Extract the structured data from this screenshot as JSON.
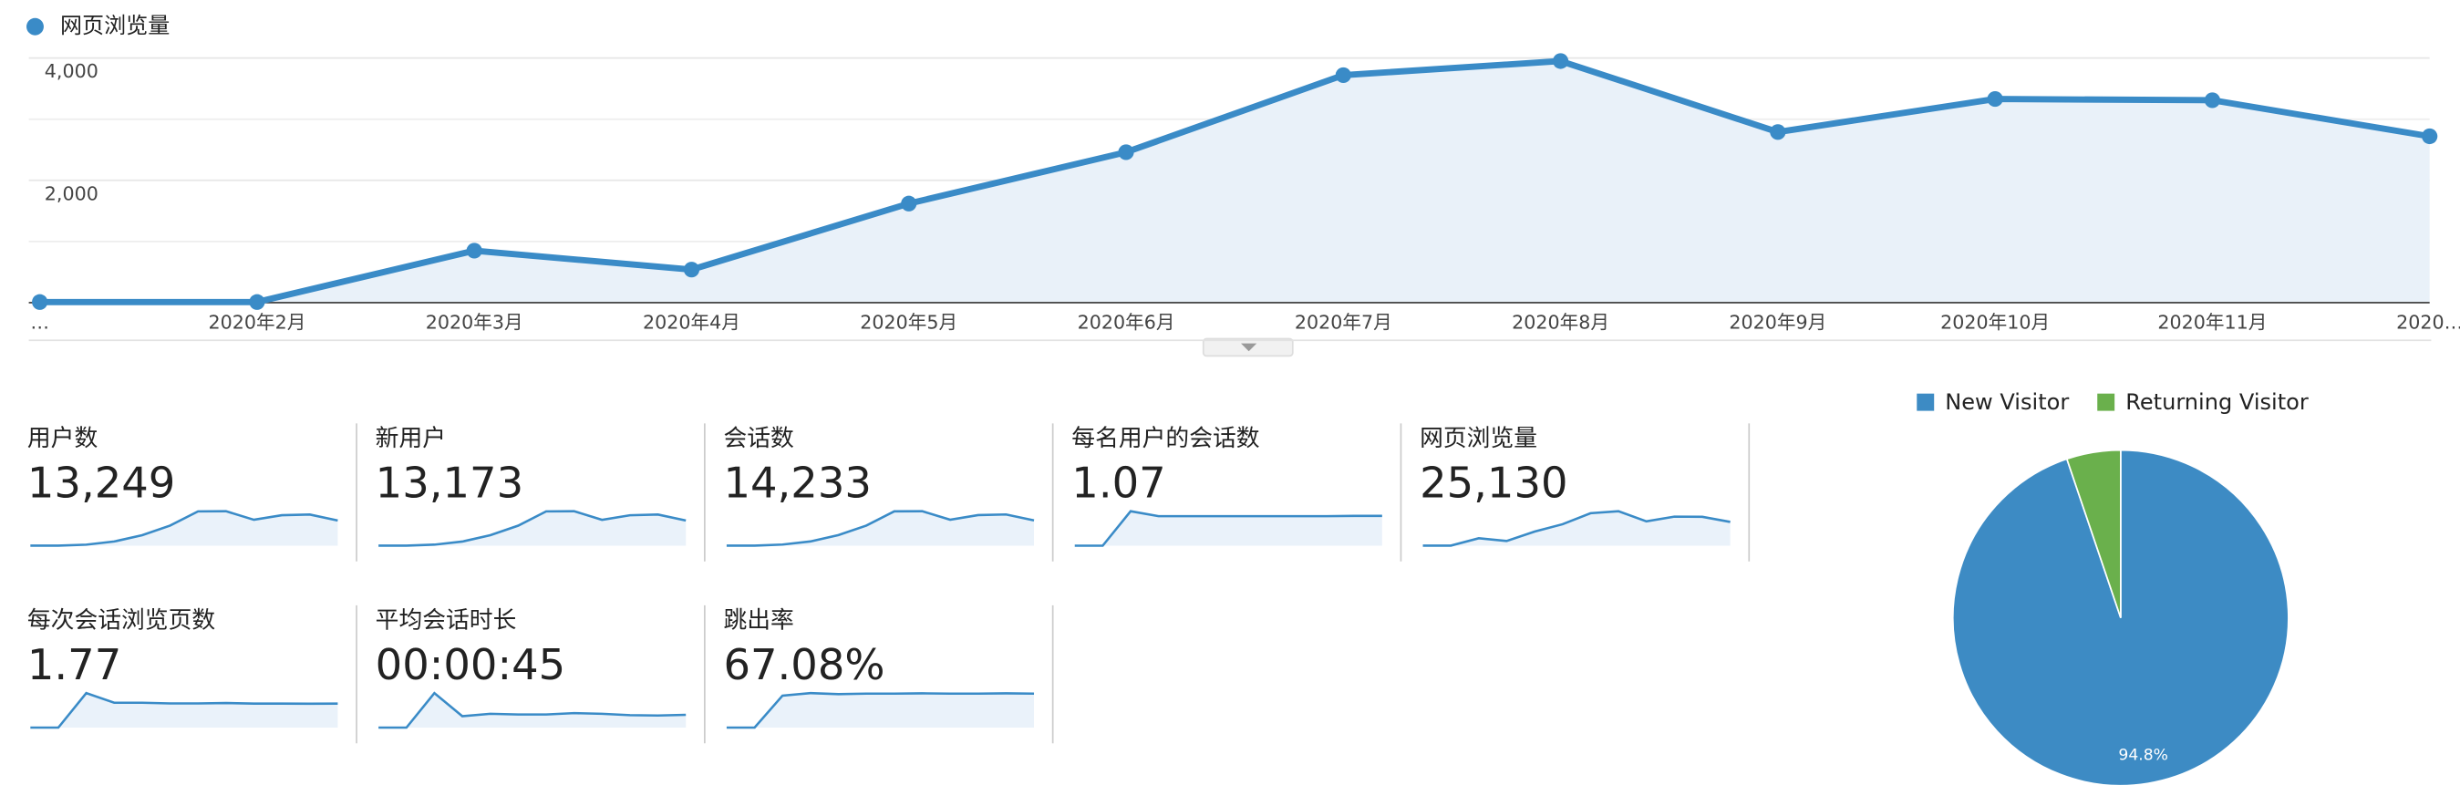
{
  "chart_data": [
    {
      "type": "line",
      "categories": [
        "…",
        "2020年2月",
        "2020年3月",
        "2020年4月",
        "2020年5月",
        "2020年6月",
        "2020年7月",
        "2020年8月",
        "2020年9月",
        "2020年10月",
        "2020年11月",
        "2020…"
      ],
      "series": [
        {
          "name": "网页浏览量",
          "color": "#3a8bc7",
          "values": [
            10,
            10,
            850,
            540,
            1620,
            2460,
            3720,
            3950,
            2790,
            3330,
            3310,
            2720
          ]
        }
      ],
      "ylim": [
        0,
        4000
      ],
      "yticks": [
        {
          "value": 2000,
          "label": "2,000"
        },
        {
          "value": 4000,
          "label": "4,000"
        }
      ],
      "minor_yticks": [
        1000,
        3000
      ],
      "grid": true,
      "area": true
    },
    {
      "type": "pie",
      "categories": [
        "New Visitor",
        "Returning Visitor"
      ],
      "values": [
        94.8,
        5.2
      ],
      "value_labels": [
        "94.8%",
        null
      ],
      "colors": [
        "#3d8bc4",
        "#6ab04c"
      ],
      "legend": "top"
    }
  ],
  "metrics": [
    {
      "label": "用户数",
      "value": "13,249",
      "sparkline": [
        5,
        5,
        60,
        240,
        600,
        1150,
        1960,
        1970,
        1480,
        1740,
        1780,
        1440
      ]
    },
    {
      "label": "新用户",
      "value": "13,173",
      "sparkline": [
        5,
        5,
        60,
        235,
        595,
        1140,
        1950,
        1960,
        1470,
        1730,
        1770,
        1430
      ]
    },
    {
      "label": "会话数",
      "value": "14,233",
      "sparkline": [
        5,
        5,
        70,
        260,
        650,
        1230,
        2100,
        2110,
        1590,
        1870,
        1910,
        1550
      ]
    },
    {
      "label": "每名用户的会话数",
      "value": "1.07",
      "sparkline": [
        0,
        0,
        1.25,
        1.07,
        1.07,
        1.07,
        1.07,
        1.07,
        1.07,
        1.07,
        1.08,
        1.08
      ]
    },
    {
      "label": "网页浏览量",
      "value": "25,130",
      "sparkline": [
        10,
        10,
        850,
        540,
        1620,
        2460,
        3720,
        3950,
        2790,
        3330,
        3310,
        2720
      ]
    },
    {
      "label": "每次会话浏览页数",
      "value": "1.77",
      "sparkline": [
        0,
        0,
        2.5,
        1.8,
        1.8,
        1.75,
        1.75,
        1.78,
        1.74,
        1.74,
        1.73,
        1.74
      ]
    },
    {
      "label": "平均会话时长",
      "value": "00:00:45",
      "sparkline": [
        0,
        0,
        100,
        33,
        40,
        38,
        38,
        42,
        40,
        36,
        35,
        37
      ]
    },
    {
      "label": "跳出率",
      "value": "67.08%",
      "sparkline": [
        0,
        0,
        63,
        68,
        66,
        67,
        67,
        67.5,
        67,
        67,
        67.5,
        67
      ]
    }
  ]
}
